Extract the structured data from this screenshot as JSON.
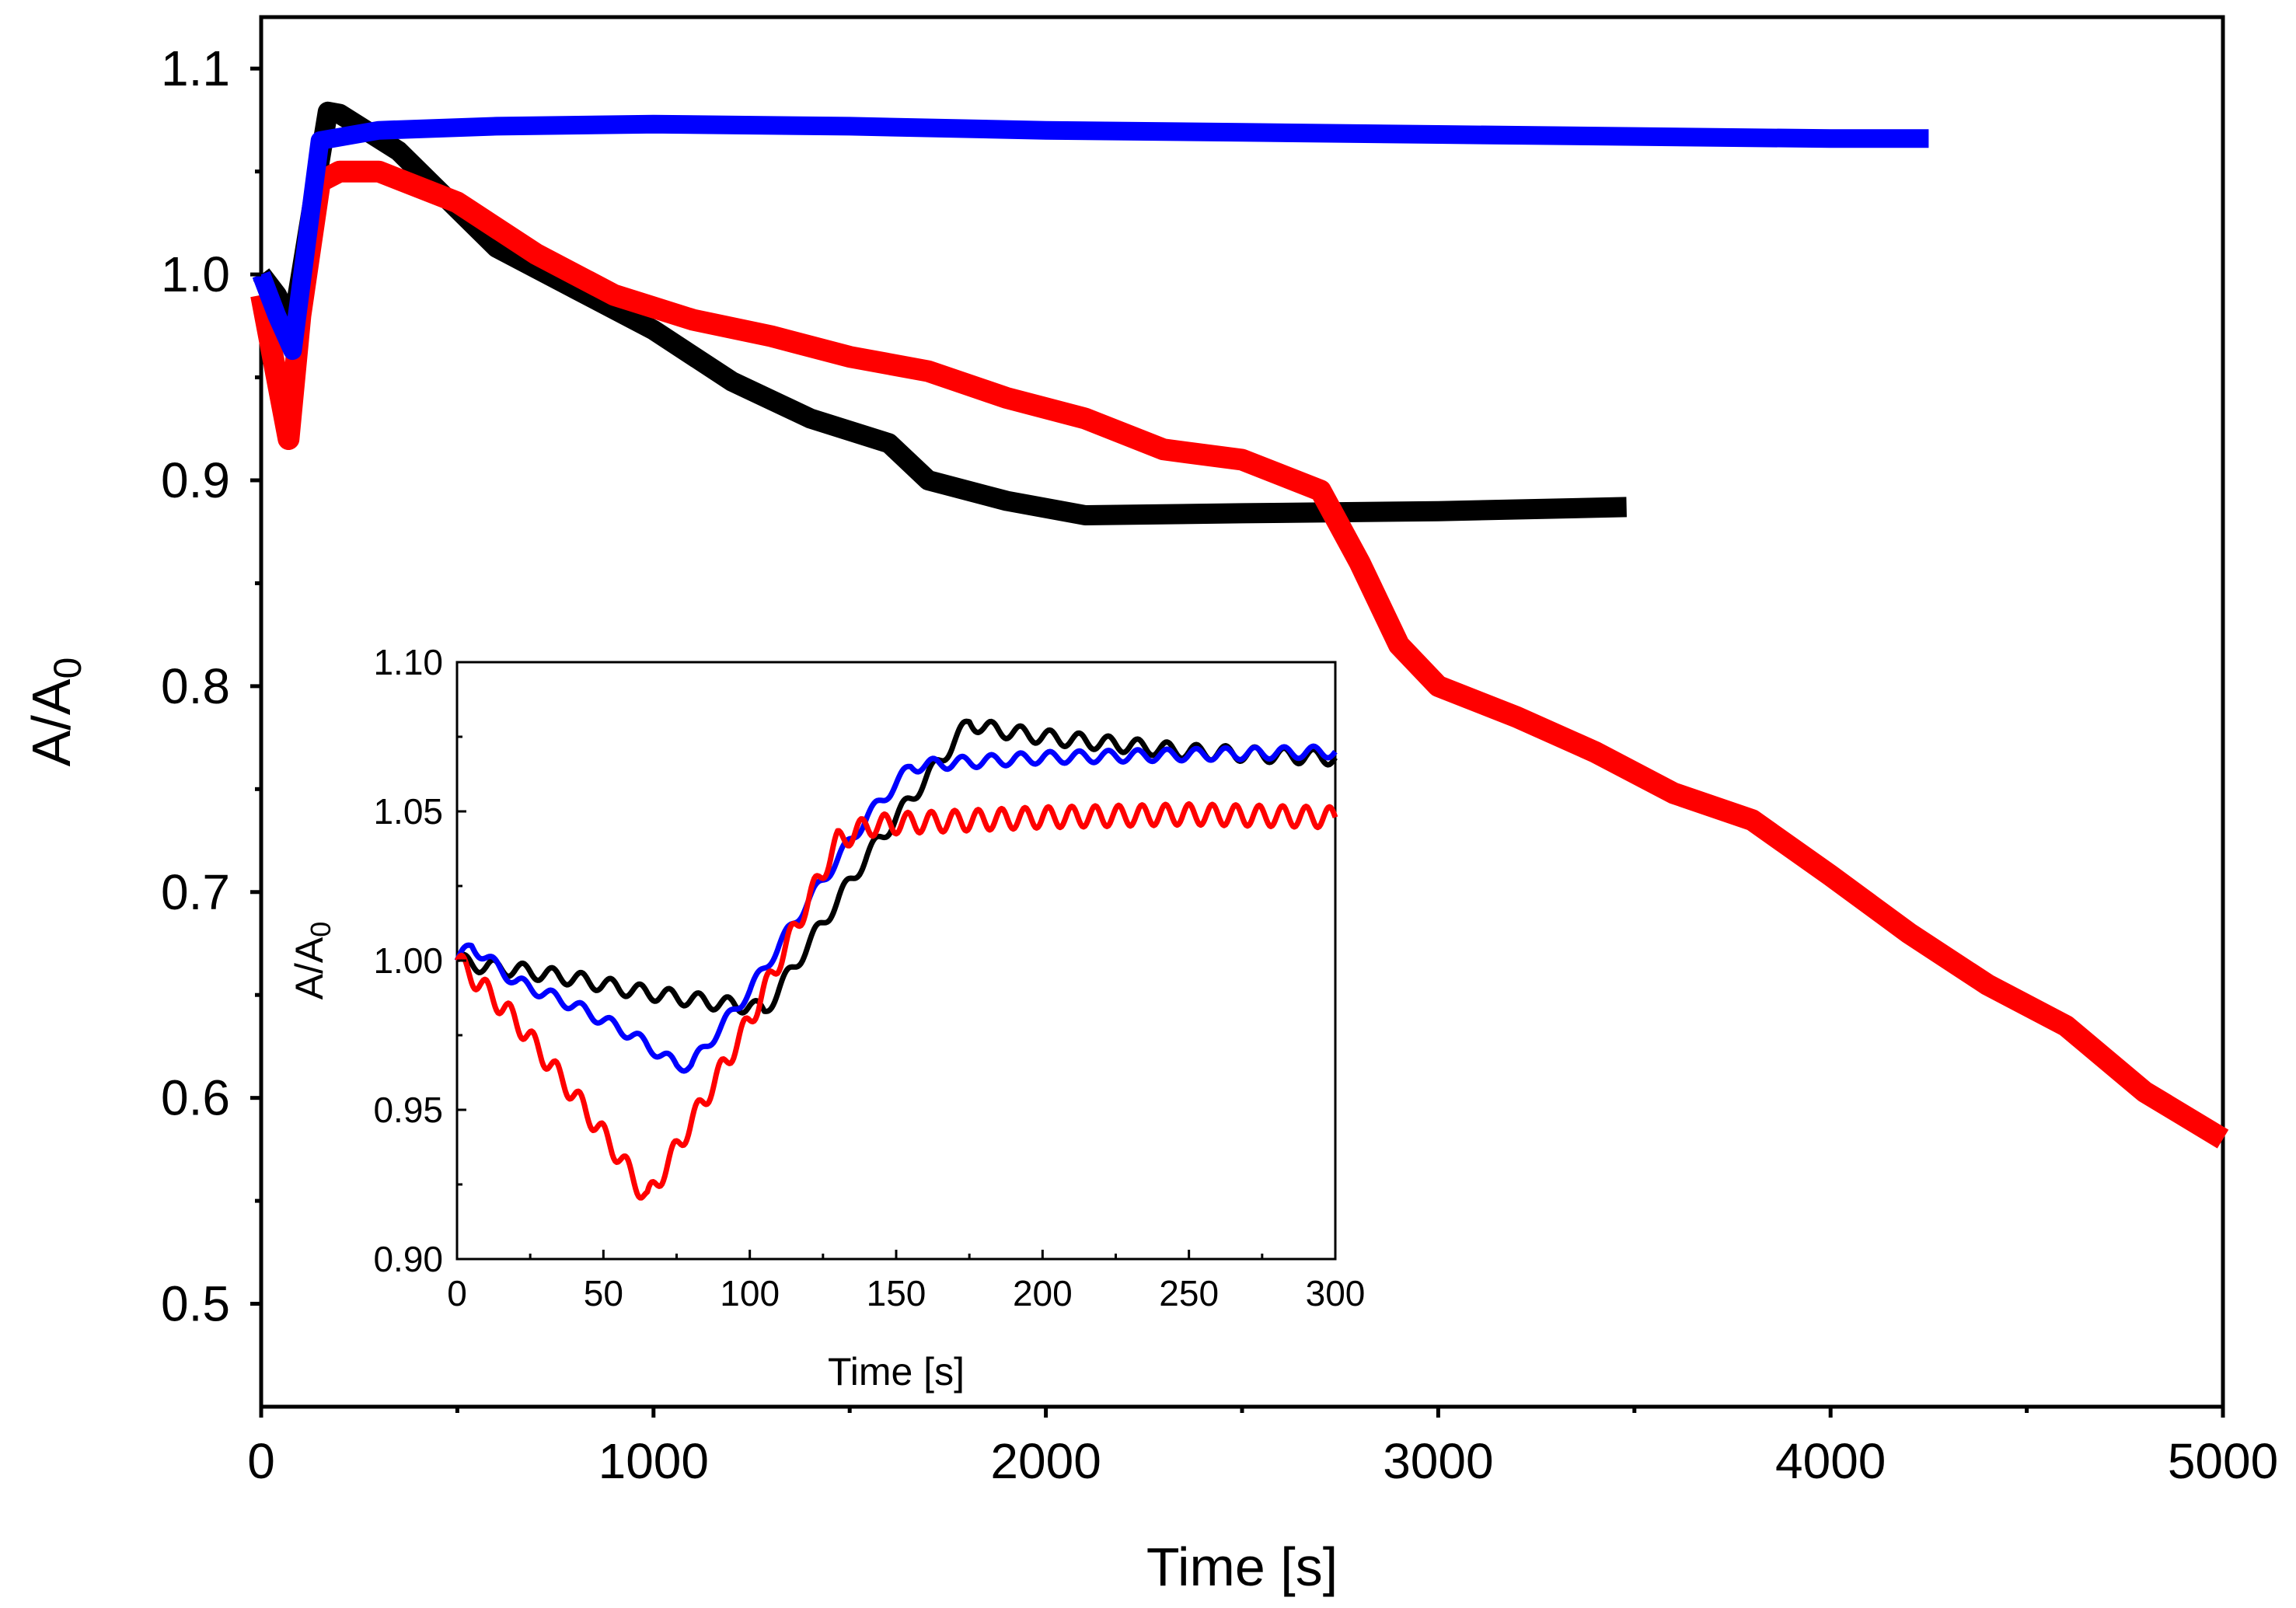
{
  "chart_data": [
    {
      "type": "line",
      "name": "main",
      "xlabel": "Time [s]",
      "ylabel": "A/A",
      "ylabel_sub": "0",
      "xlim": [
        0,
        5000
      ],
      "ylim": [
        0.45,
        1.125
      ],
      "xticks": [
        0,
        1000,
        2000,
        3000,
        4000,
        5000
      ],
      "xtick_labels": [
        "0",
        "1000",
        "2000",
        "3000",
        "4000",
        "5000"
      ],
      "yticks": [
        0.5,
        0.6,
        0.7,
        0.8,
        0.9,
        1.0,
        1.1
      ],
      "ytick_labels": [
        "0.5",
        "0.6",
        "0.7",
        "0.8",
        "0.9",
        "1.0",
        "1.1"
      ],
      "series": [
        {
          "name": "black",
          "color": "#000000",
          "x": [
            0,
            40,
            80,
            170,
            200,
            350,
            600,
            800,
            1000,
            1200,
            1400,
            1600,
            1700,
            1900,
            2100,
            2500,
            3000,
            3480
          ],
          "y": [
            1.0,
            0.99,
            0.975,
            1.079,
            1.078,
            1.06,
            1.013,
            0.993,
            0.973,
            0.948,
            0.93,
            0.918,
            0.9,
            0.89,
            0.883,
            0.884,
            0.885,
            0.887
          ]
        },
        {
          "name": "blue",
          "color": "#0000ff",
          "x": [
            0,
            40,
            80,
            150,
            300,
            600,
            1000,
            1500,
            2000,
            2500,
            3000,
            3500,
            4000,
            4250
          ],
          "y": [
            1.0,
            0.98,
            0.963,
            1.065,
            1.07,
            1.072,
            1.073,
            1.072,
            1.07,
            1.069,
            1.068,
            1.067,
            1.066,
            1.066
          ]
        },
        {
          "name": "red",
          "color": "#ff0000",
          "x": [
            0,
            30,
            70,
            100,
            150,
            200,
            300,
            500,
            700,
            900,
            1100,
            1300,
            1500,
            1700,
            1900,
            2100,
            2300,
            2500,
            2700,
            2800,
            2900,
            3000,
            3200,
            3400,
            3600,
            3800,
            4000,
            4200,
            4400,
            4600,
            4800,
            5000
          ],
          "y": [
            0.99,
            0.96,
            0.92,
            0.98,
            1.045,
            1.05,
            1.05,
            1.035,
            1.01,
            0.99,
            0.978,
            0.97,
            0.96,
            0.953,
            0.94,
            0.93,
            0.915,
            0.91,
            0.895,
            0.86,
            0.82,
            0.8,
            0.785,
            0.768,
            0.748,
            0.735,
            0.708,
            0.68,
            0.655,
            0.635,
            0.603,
            0.58
          ]
        }
      ]
    },
    {
      "type": "line",
      "name": "inset",
      "xlabel": "Time [s]",
      "ylabel": "A/A",
      "ylabel_sub": "0",
      "xlim": [
        0,
        300
      ],
      "ylim": [
        0.9,
        1.1
      ],
      "xticks": [
        0,
        50,
        100,
        150,
        200,
        250,
        300
      ],
      "xtick_labels": [
        "0",
        "50",
        "100",
        "150",
        "200",
        "250",
        "300"
      ],
      "yticks": [
        0.9,
        0.95,
        1.0,
        1.05,
        1.1
      ],
      "ytick_labels": [
        "0.90",
        "0.95",
        "1.00",
        "1.05",
        "1.10"
      ],
      "series": [
        {
          "name": "black",
          "color": "#000000",
          "x": [
            0,
            10,
            20,
            40,
            60,
            80,
            95,
            100,
            105,
            140,
            175,
            180,
            200,
            250,
            300
          ],
          "y": [
            1.0,
            0.998,
            0.997,
            0.994,
            0.99,
            0.987,
            0.985,
            0.985,
            0.983,
            1.035,
            1.08,
            1.078,
            1.075,
            1.07,
            1.068
          ],
          "osc_amp": 0.0025,
          "osc_period": 10
        },
        {
          "name": "blue",
          "color": "#0000ff",
          "x": [
            0,
            5,
            20,
            40,
            60,
            75,
            80,
            100,
            120,
            140,
            155,
            165,
            200,
            250,
            300
          ],
          "y": [
            1.0,
            1.005,
            0.993,
            0.985,
            0.975,
            0.965,
            0.965,
            0.99,
            1.02,
            1.048,
            1.065,
            1.066,
            1.068,
            1.069,
            1.07
          ],
          "osc_amp": 0.002,
          "osc_period": 10
        },
        {
          "name": "red",
          "color": "#ff0000",
          "x": [
            0,
            20,
            40,
            55,
            65,
            100,
            130,
            140,
            150,
            200,
            250,
            300
          ],
          "y": [
            1.0,
            0.98,
            0.955,
            0.935,
            0.92,
            0.98,
            1.04,
            1.045,
            1.046,
            1.048,
            1.049,
            1.048
          ],
          "osc_amp": 0.0035,
          "osc_period": 8
        }
      ]
    }
  ]
}
